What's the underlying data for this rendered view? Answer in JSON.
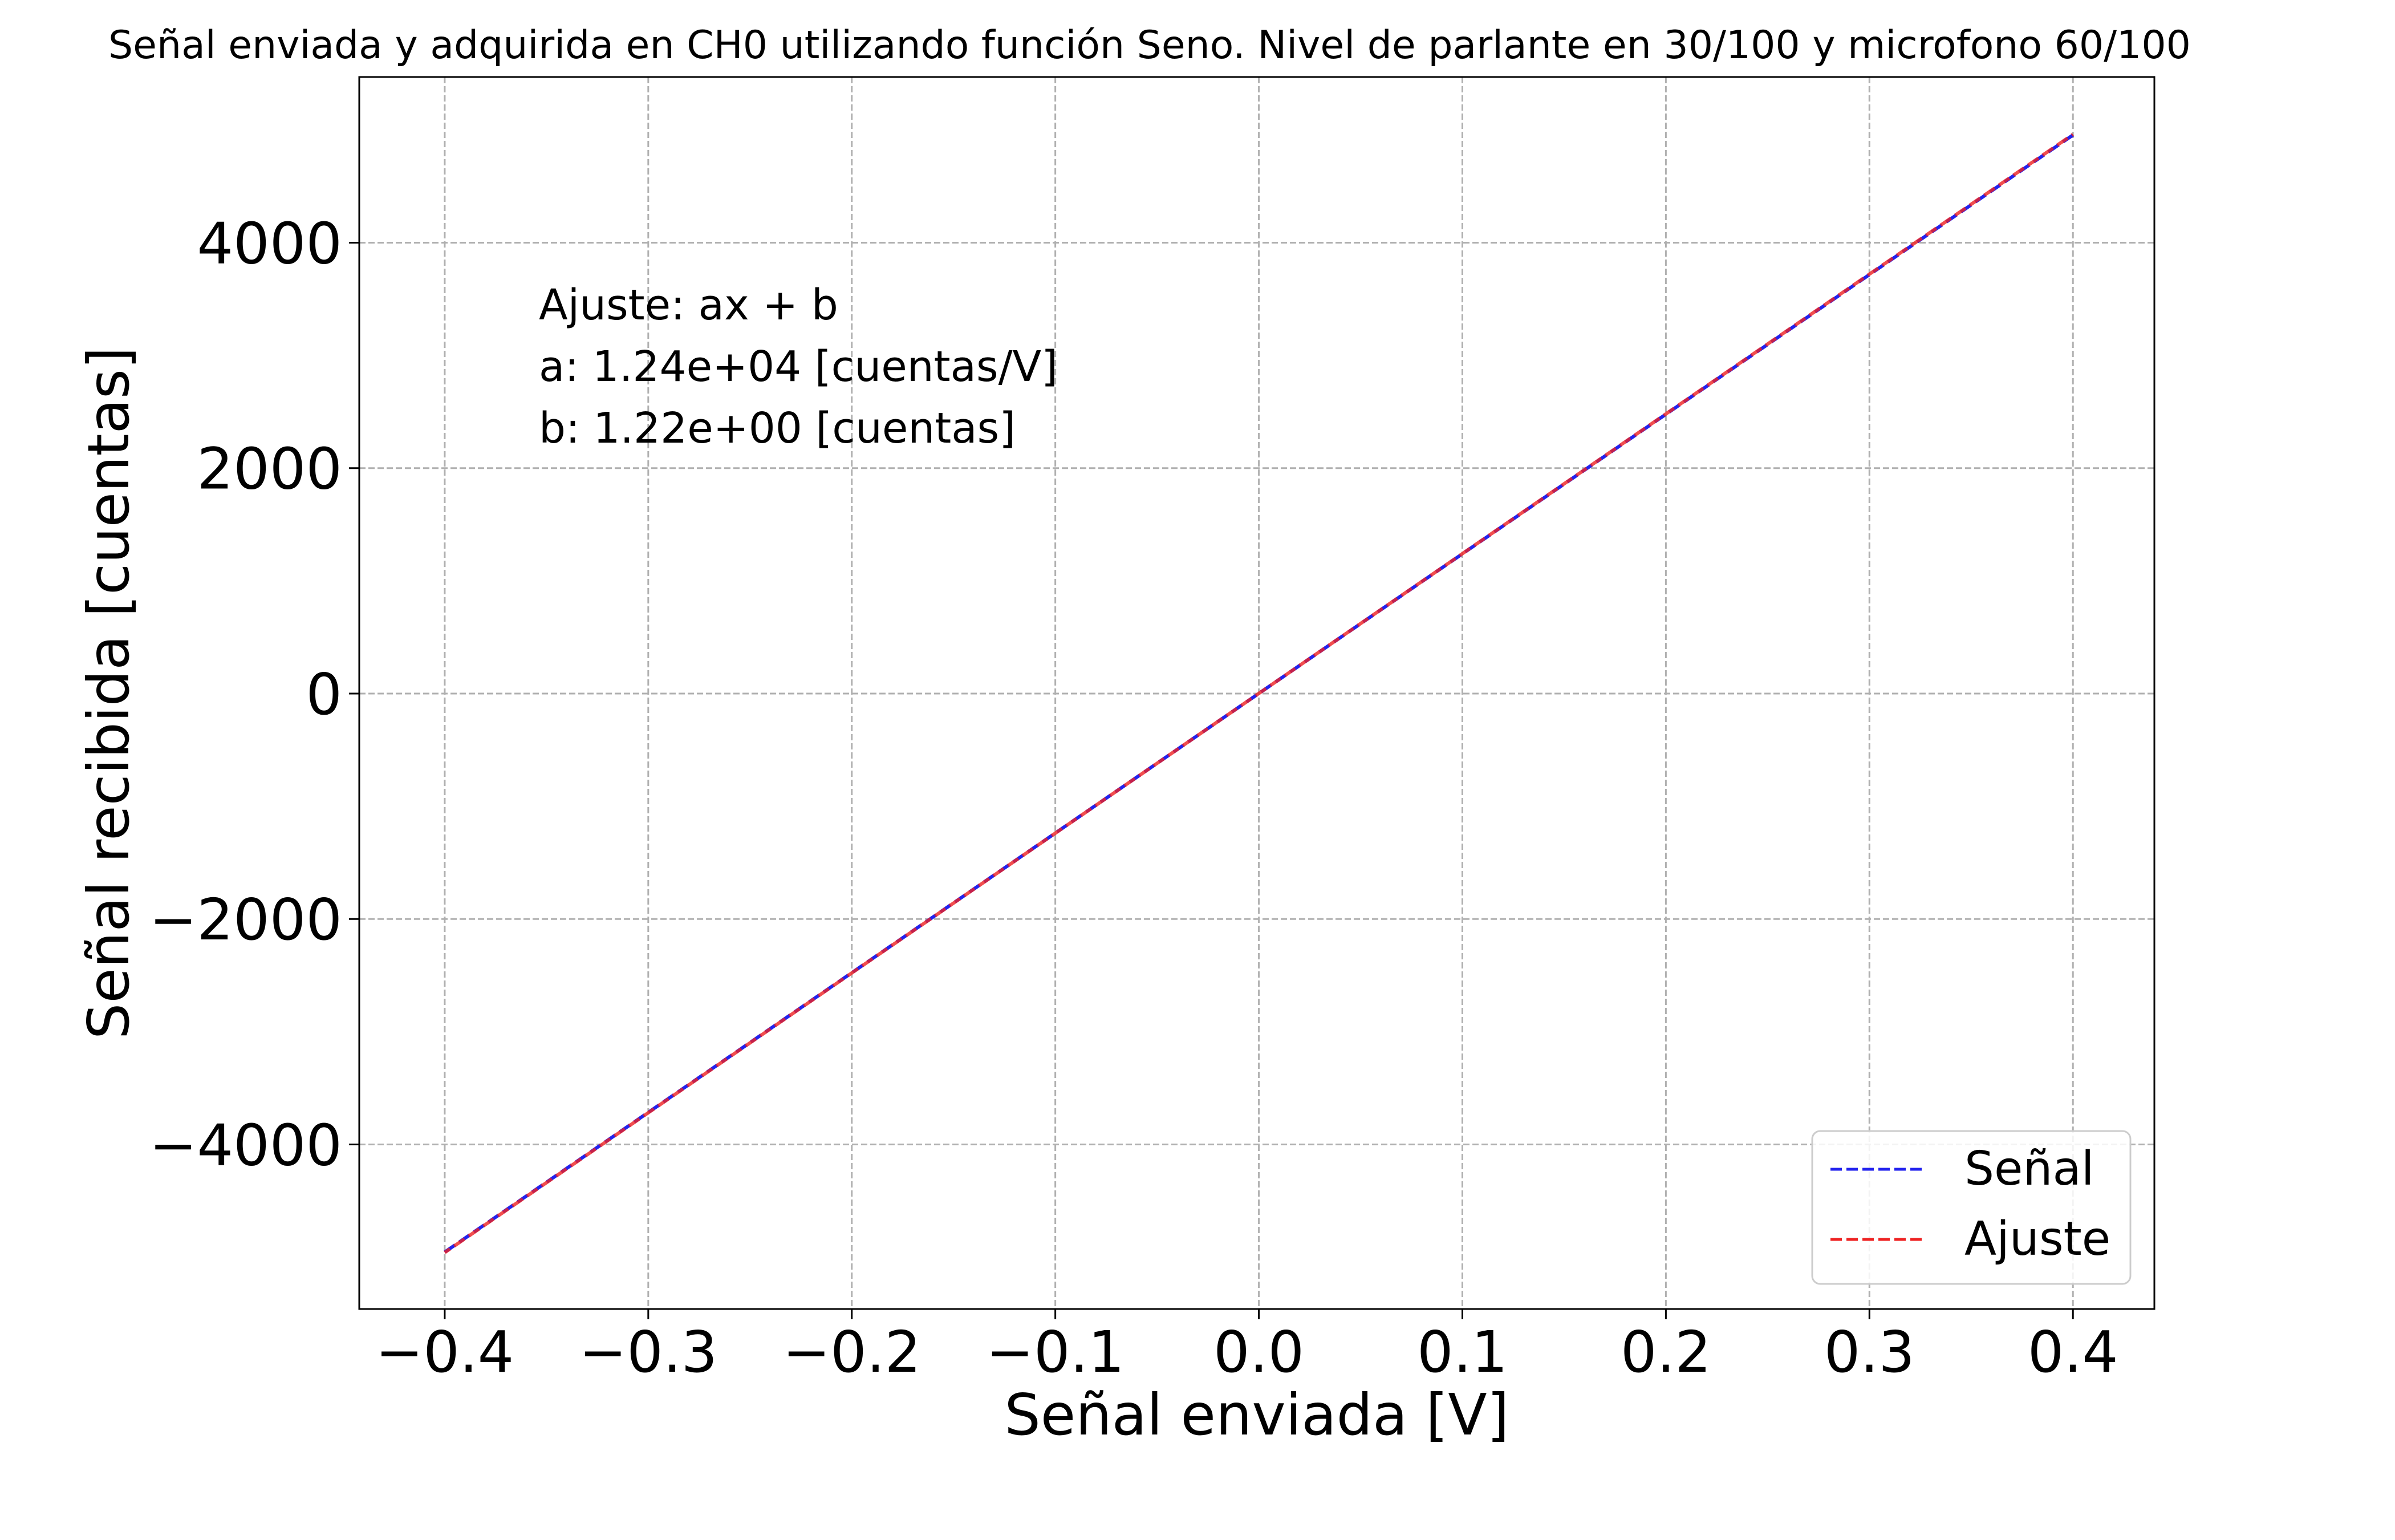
{
  "chart_data": {
    "type": "line",
    "title": "Señal enviada y adquirida en CH0 utilizando función Seno. Nivel de parlante en 30/100 y microfono 60/100",
    "xlabel": "Señal enviada [V]",
    "ylabel": "Señal recibida [cuentas]",
    "xlim": [
      -0.442,
      0.44
    ],
    "ylim": [
      -5460,
      5470
    ],
    "xticks": [
      -0.4,
      -0.3,
      -0.2,
      -0.1,
      0.0,
      0.1,
      0.2,
      0.3,
      0.4
    ],
    "xtick_labels": [
      "−0.4",
      "−0.3",
      "−0.2",
      "−0.1",
      "0.0",
      "0.1",
      "0.2",
      "0.3",
      "0.4"
    ],
    "yticks": [
      -4000,
      -2000,
      0,
      2000,
      4000
    ],
    "ytick_labels": [
      "−4000",
      "−2000",
      "0",
      "2000",
      "4000"
    ],
    "grid": true,
    "legend_position": "bottom-right",
    "annotation_lines": [
      "Ajuste: ax + b",
      "a: 1.24e+04 [cuentas/V]",
      "b: 1.22e+00 [cuentas]"
    ],
    "series": [
      {
        "name": "Señal",
        "color": "#2222ee",
        "dash": "dashed",
        "x": [
          -0.4,
          0.0,
          0.4
        ],
        "y": [
          -4955,
          1,
          4955
        ]
      },
      {
        "name": "Ajuste",
        "color": "#ee2222",
        "dash": "dashed",
        "x": [
          -0.4,
          0.0,
          0.4
        ],
        "y": [
          -4959,
          1.22,
          4961
        ]
      }
    ]
  }
}
